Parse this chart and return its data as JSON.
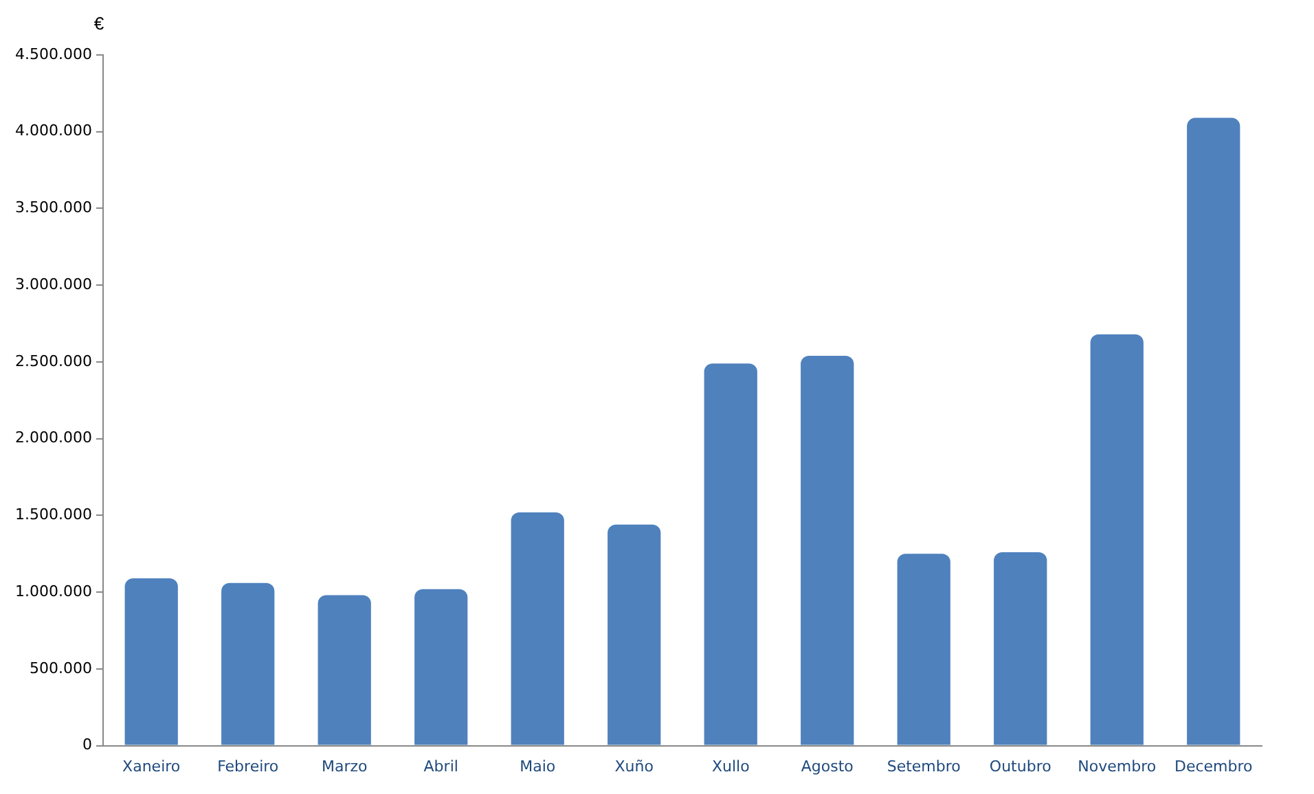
{
  "chart_data": {
    "type": "bar",
    "ylabel": "€",
    "categories": [
      "Xaneiro",
      "Febreiro",
      "Marzo",
      "Abril",
      "Maio",
      "Xuño",
      "Xullo",
      "Agosto",
      "Setembro",
      "Outubro",
      "Novembro",
      "Decembro"
    ],
    "values": [
      1090000,
      1060000,
      980000,
      1020000,
      1520000,
      1440000,
      2490000,
      2540000,
      1250000,
      1260000,
      2680000,
      4090000
    ],
    "color": "#4f81bd",
    "ylim": [
      0,
      4500000
    ],
    "yticks": [
      0,
      {
        "value": 500000,
        "label": "500.000"
      },
      {
        "value": 1000000,
        "label": "1.000.000"
      },
      {
        "value": 1500000,
        "label": "1.500.000"
      },
      {
        "value": 2000000,
        "label": "2.000.000"
      },
      {
        "value": 2500000,
        "label": "2.500.000"
      },
      {
        "value": 3000000,
        "label": "3.000.000"
      },
      {
        "value": 3500000,
        "label": "3.500.000"
      },
      {
        "value": 4000000,
        "label": "4.000.000"
      },
      {
        "value": 4500000,
        "label": "4.500.000"
      }
    ],
    "grid": false,
    "legend": false
  }
}
